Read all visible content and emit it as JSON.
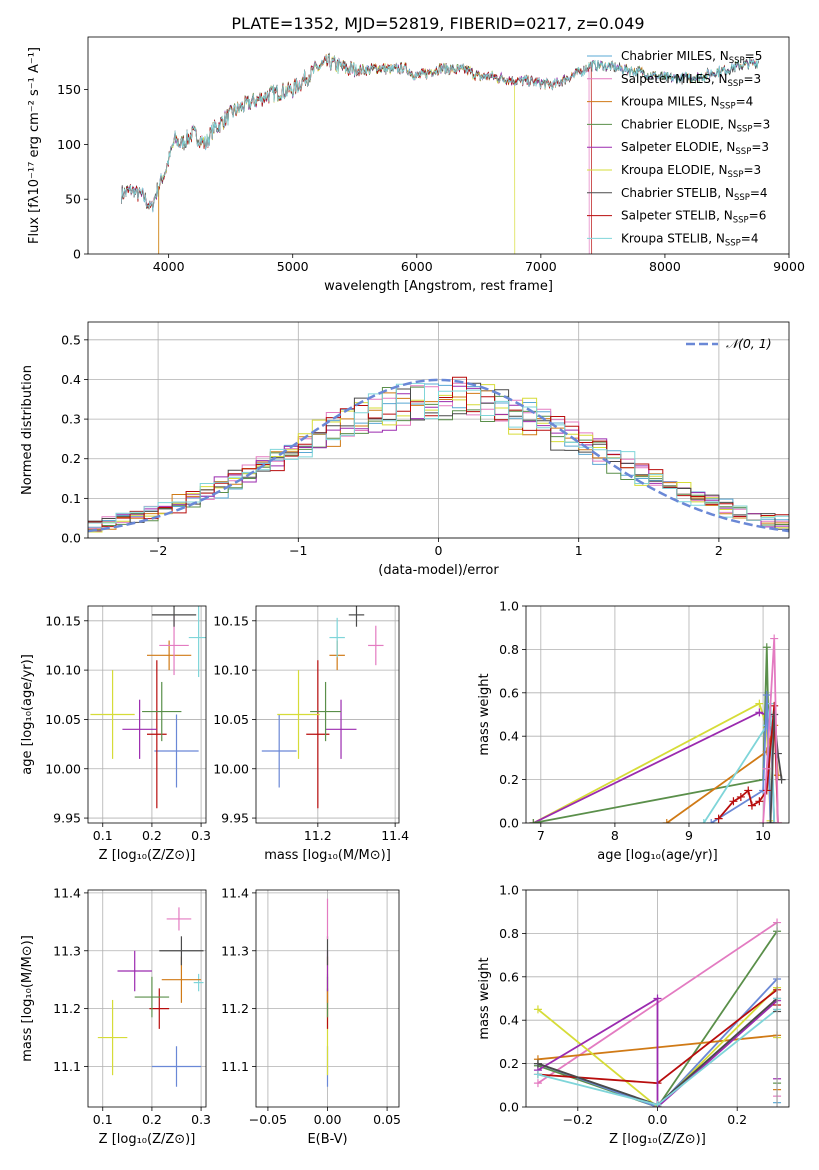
{
  "figure_title": "PLATE=1352, MJD=52819, FIBERID=0217, z=0.049",
  "colors": [
    "#59a8d4",
    "#e37bc1",
    "#d07a16",
    "#5a8f4a",
    "#9b2aaf",
    "#d6dc38",
    "#4a4a4a",
    "#b80d0d",
    "#7fd5d9"
  ],
  "chart_data": [
    {
      "type": "line",
      "id": "spectrum",
      "xlabel": "wavelength [Angstrom, rest frame]",
      "ylabel": "Flux [fλ10⁻¹⁷ erg cm⁻² s⁻¹ A⁻¹]",
      "xlim": [
        3350,
        9000
      ],
      "ylim": [
        0,
        198
      ],
      "x_ticks": [
        4000,
        5000,
        6000,
        7000,
        8000,
        9000
      ],
      "y_ticks": [
        0,
        50,
        100,
        150
      ],
      "legend_position": "right",
      "legend": [
        {
          "label": "Chabrier MILES, N",
          "sub": "SSP",
          "suffix": "=5"
        },
        {
          "label": "Salpeter MILES, N",
          "sub": "SSP",
          "suffix": "=3"
        },
        {
          "label": "Kroupa MILES, N",
          "sub": "SSP",
          "suffix": "=4"
        },
        {
          "label": "Chabrier ELODIE, N",
          "sub": "SSP",
          "suffix": "=3"
        },
        {
          "label": "Salpeter ELODIE, N",
          "sub": "SSP",
          "suffix": "=3"
        },
        {
          "label": "Kroupa ELODIE, N",
          "sub": "SSP",
          "suffix": "=3"
        },
        {
          "label": "Chabrier STELIB, N",
          "sub": "SSP",
          "suffix": "=4"
        },
        {
          "label": "Salpeter STELIB, N",
          "sub": "SSP",
          "suffix": "=6"
        },
        {
          "label": "Kroupa STELIB, N",
          "sub": "SSP",
          "suffix": "=4"
        }
      ],
      "continuum": [
        [
          3620,
          55
        ],
        [
          3700,
          58
        ],
        [
          3800,
          52
        ],
        [
          3860,
          42
        ],
        [
          3920,
          62
        ],
        [
          3980,
          78
        ],
        [
          4050,
          105
        ],
        [
          4100,
          100
        ],
        [
          4200,
          110
        ],
        [
          4300,
          100
        ],
        [
          4350,
          112
        ],
        [
          4500,
          128
        ],
        [
          4600,
          135
        ],
        [
          4700,
          140
        ],
        [
          4800,
          145
        ],
        [
          4900,
          148
        ],
        [
          5000,
          150
        ],
        [
          5100,
          160
        ],
        [
          5200,
          170
        ],
        [
          5300,
          175
        ],
        [
          5400,
          170
        ],
        [
          5500,
          168
        ],
        [
          5600,
          168
        ],
        [
          5700,
          170
        ],
        [
          5800,
          168
        ],
        [
          5900,
          170
        ],
        [
          6000,
          162
        ],
        [
          6100,
          166
        ],
        [
          6200,
          170
        ],
        [
          6300,
          168
        ],
        [
          6400,
          168
        ],
        [
          6500,
          162
        ],
        [
          6600,
          162
        ],
        [
          6700,
          160
        ],
        [
          6800,
          158
        ],
        [
          6900,
          158
        ],
        [
          7000,
          156
        ],
        [
          7100,
          154
        ],
        [
          7200,
          160
        ],
        [
          7300,
          165
        ],
        [
          7400,
          172
        ],
        [
          7500,
          172
        ],
        [
          7600,
          170
        ],
        [
          7700,
          168
        ],
        [
          7800,
          166
        ],
        [
          7900,
          163
        ],
        [
          8000,
          161
        ],
        [
          8100,
          160
        ],
        [
          8200,
          161
        ],
        [
          8300,
          162
        ],
        [
          8400,
          166
        ],
        [
          8500,
          168
        ],
        [
          8600,
          172
        ],
        [
          8700,
          174
        ],
        [
          8760,
          175
        ]
      ],
      "series_ranges": [
        [
          3620,
          8760
        ],
        [
          3620,
          7390
        ],
        [
          3620,
          8760
        ],
        [
          3620,
          8760
        ],
        [
          3620,
          8760
        ],
        [
          3920,
          6790
        ],
        [
          3620,
          8760
        ],
        [
          3620,
          7410
        ],
        [
          3620,
          8760
        ]
      ]
    },
    {
      "type": "line",
      "id": "residuals",
      "xlabel": "(data-model)/error",
      "ylabel": "Normed distribution",
      "xlim": [
        -2.5,
        2.5
      ],
      "ylim": [
        0,
        0.545
      ],
      "x_ticks": [
        -2,
        -1,
        0,
        1,
        2
      ],
      "y_ticks": [
        0.0,
        0.1,
        0.2,
        0.3,
        0.4,
        0.5
      ],
      "grid": true,
      "legend_position": "top-right",
      "normal_label": "𝒩(0, 1)",
      "normal_color": "#6a88d6",
      "bin_width": 0.1,
      "bin_start": -2.5
    },
    {
      "type": "scatter",
      "id": "age-vs-Z",
      "xlabel": "Z [log₁₀(Z/Z⊙)]",
      "ylabel": "age  [log₁₀(age/yr)]",
      "xlim": [
        0.07,
        0.31
      ],
      "ylim": [
        9.945,
        10.165
      ],
      "x_ticks": [
        0.1,
        0.2,
        0.3
      ],
      "y_ticks": [
        9.95,
        10.0,
        10.05,
        10.1,
        10.15
      ],
      "grid": true,
      "points": [
        {
          "x": 0.25,
          "y": 10.018,
          "xerr": 0.045,
          "yerr": 0.037,
          "color": "#6a88d6"
        },
        {
          "x": 0.21,
          "y": 10.035,
          "xerr": 0.02,
          "yerr": 0.075,
          "color": "#b80d0d"
        },
        {
          "x": 0.175,
          "y": 10.04,
          "xerr": 0.035,
          "yerr": 0.03,
          "color": "#9b2aaf"
        },
        {
          "x": 0.12,
          "y": 10.055,
          "xerr": 0.045,
          "yerr": 0.045,
          "color": "#d6dc38"
        },
        {
          "x": 0.22,
          "y": 10.058,
          "xerr": 0.04,
          "yerr": 0.03,
          "color": "#5a8f4a"
        },
        {
          "x": 0.235,
          "y": 10.115,
          "xerr": 0.045,
          "yerr": 0.015,
          "color": "#d07a16"
        },
        {
          "x": 0.245,
          "y": 10.125,
          "xerr": 0.03,
          "yerr": 0.03,
          "color": "#e37bc1"
        },
        {
          "x": 0.295,
          "y": 10.133,
          "xerr": 0.02,
          "yerr": 0.04,
          "color": "#7fd5d9"
        },
        {
          "x": 0.245,
          "y": 10.156,
          "xerr": 0.045,
          "yerr": 0.012,
          "color": "#4a4a4a"
        }
      ]
    },
    {
      "type": "scatter",
      "id": "age-vs-mass",
      "xlabel": "mass [log₁₀(M/M⊙)]",
      "ylabel": "",
      "xlim": [
        11.04,
        11.41
      ],
      "ylim": [
        9.945,
        10.165
      ],
      "x_ticks": [
        11.2,
        11.4
      ],
      "y_ticks": [
        9.95,
        10.0,
        10.05,
        10.1,
        10.15
      ],
      "grid": true,
      "points": [
        {
          "x": 11.1,
          "y": 10.018,
          "xerr": 0.045,
          "yerr": 0.037,
          "color": "#6a88d6"
        },
        {
          "x": 11.2,
          "y": 10.035,
          "xerr": 0.03,
          "yerr": 0.075,
          "color": "#b80d0d"
        },
        {
          "x": 11.26,
          "y": 10.04,
          "xerr": 0.04,
          "yerr": 0.03,
          "color": "#9b2aaf"
        },
        {
          "x": 11.15,
          "y": 10.055,
          "xerr": 0.055,
          "yerr": 0.045,
          "color": "#d6dc38"
        },
        {
          "x": 11.22,
          "y": 10.058,
          "xerr": 0.04,
          "yerr": 0.03,
          "color": "#5a8f4a"
        },
        {
          "x": 11.25,
          "y": 10.115,
          "xerr": 0.02,
          "yerr": 0.015,
          "color": "#d07a16"
        },
        {
          "x": 11.35,
          "y": 10.125,
          "xerr": 0.02,
          "yerr": 0.02,
          "color": "#e37bc1"
        },
        {
          "x": 11.25,
          "y": 10.133,
          "xerr": 0.02,
          "yerr": 0.02,
          "color": "#7fd5d9"
        },
        {
          "x": 11.3,
          "y": 10.156,
          "xerr": 0.02,
          "yerr": 0.012,
          "color": "#4a4a4a"
        }
      ]
    },
    {
      "type": "line",
      "id": "mass-weight-vs-age",
      "xlabel": "age  [log₁₀(age/yr)]",
      "ylabel": "mass weight",
      "xlim": [
        6.8,
        10.35
      ],
      "ylim": [
        0,
        1.0
      ],
      "x_ticks": [
        7,
        8,
        9,
        10
      ],
      "y_ticks": [
        0.0,
        0.2,
        0.4,
        0.6,
        0.8,
        1.0
      ],
      "grid": true,
      "series": [
        {
          "color": "#d6dc38",
          "points": [
            [
              6.9,
              0.0
            ],
            [
              9.95,
              0.55
            ],
            [
              10.05,
              0.44
            ],
            [
              10.1,
              0.01
            ]
          ]
        },
        {
          "color": "#9b2aaf",
          "points": [
            [
              6.9,
              0.0
            ],
            [
              9.95,
              0.51
            ],
            [
              10.1,
              0.49
            ],
            [
              10.15,
              0.0
            ]
          ]
        },
        {
          "color": "#5a8f4a",
          "points": [
            [
              6.9,
              0.0
            ],
            [
              10.0,
              0.2
            ],
            [
              10.05,
              0.81
            ],
            [
              10.1,
              0.0
            ]
          ]
        },
        {
          "color": "#d07a16",
          "points": [
            [
              8.7,
              0.0
            ],
            [
              10.05,
              0.33
            ],
            [
              10.15,
              0.45
            ],
            [
              10.2,
              0.22
            ]
          ]
        },
        {
          "color": "#7fd5d9",
          "points": [
            [
              9.2,
              0.0
            ],
            [
              10.05,
              0.45
            ],
            [
              10.1,
              0.55
            ],
            [
              10.15,
              0.0
            ]
          ]
        },
        {
          "color": "#6a88d6",
          "points": [
            [
              9.3,
              0.0
            ],
            [
              10.0,
              0.15
            ],
            [
              10.05,
              0.59
            ],
            [
              10.1,
              0.0
            ]
          ]
        },
        {
          "color": "#b80d0d",
          "points": [
            [
              9.4,
              0.02
            ],
            [
              9.6,
              0.1
            ],
            [
              9.7,
              0.12
            ],
            [
              9.8,
              0.15
            ],
            [
              9.85,
              0.08
            ],
            [
              9.95,
              0.1
            ],
            [
              10.05,
              0.15
            ],
            [
              10.15,
              0.54
            ],
            [
              10.2,
              0.0
            ]
          ]
        },
        {
          "color": "#4a4a4a",
          "points": [
            [
              10.1,
              0.0
            ],
            [
              10.15,
              0.5
            ],
            [
              10.2,
              0.32
            ],
            [
              10.25,
              0.2
            ]
          ]
        },
        {
          "color": "#e37bc1",
          "points": [
            [
              10.0,
              0.0
            ],
            [
              10.05,
              0.25
            ],
            [
              10.15,
              0.85
            ],
            [
              10.2,
              0.0
            ]
          ]
        }
      ]
    },
    {
      "type": "scatter",
      "id": "mass-vs-Z",
      "xlabel": "Z [log₁₀(Z/Z⊙)]",
      "ylabel": "mass [log₁₀(M/M⊙)]",
      "xlim": [
        0.07,
        0.31
      ],
      "ylim": [
        11.03,
        11.405
      ],
      "x_ticks": [
        0.1,
        0.2,
        0.3
      ],
      "y_ticks": [
        11.1,
        11.2,
        11.3,
        11.4
      ],
      "grid": true,
      "points": [
        {
          "x": 0.25,
          "y": 11.1,
          "xerr": 0.05,
          "yerr": 0.035,
          "color": "#6a88d6"
        },
        {
          "x": 0.12,
          "y": 11.15,
          "xerr": 0.03,
          "yerr": 0.065,
          "color": "#d6dc38"
        },
        {
          "x": 0.215,
          "y": 11.2,
          "xerr": 0.02,
          "yerr": 0.035,
          "color": "#b80d0d"
        },
        {
          "x": 0.2,
          "y": 11.22,
          "xerr": 0.035,
          "yerr": 0.035,
          "color": "#5a8f4a"
        },
        {
          "x": 0.295,
          "y": 11.245,
          "xerr": 0.01,
          "yerr": 0.015,
          "color": "#7fd5d9"
        },
        {
          "x": 0.26,
          "y": 11.25,
          "xerr": 0.04,
          "yerr": 0.04,
          "color": "#d07a16"
        },
        {
          "x": 0.165,
          "y": 11.265,
          "xerr": 0.035,
          "yerr": 0.035,
          "color": "#9b2aaf"
        },
        {
          "x": 0.26,
          "y": 11.3,
          "xerr": 0.045,
          "yerr": 0.025,
          "color": "#4a4a4a"
        },
        {
          "x": 0.255,
          "y": 11.355,
          "xerr": 0.025,
          "yerr": 0.02,
          "color": "#e37bc1"
        }
      ]
    },
    {
      "type": "scatter",
      "id": "mass-vs-ebv",
      "xlabel": "E(B-V)",
      "ylabel": "",
      "xlim": [
        -0.06,
        0.06
      ],
      "ylim": [
        11.03,
        11.405
      ],
      "x_ticks": [
        -0.05,
        0.0,
        0.05
      ],
      "y_ticks": [
        11.1,
        11.2,
        11.3,
        11.4
      ],
      "grid": true,
      "points": [
        {
          "x": 0.0,
          "y": 11.1,
          "xerr": 0,
          "yerr": 0.035,
          "color": "#6a88d6"
        },
        {
          "x": 0.0,
          "y": 11.15,
          "xerr": 0,
          "yerr": 0.065,
          "color": "#d6dc38"
        },
        {
          "x": 0.0,
          "y": 11.2,
          "xerr": 0,
          "yerr": 0.035,
          "color": "#b80d0d"
        },
        {
          "x": 0.0,
          "y": 11.22,
          "xerr": 0,
          "yerr": 0.035,
          "color": "#5a8f4a"
        },
        {
          "x": 0.0,
          "y": 11.245,
          "xerr": 0,
          "yerr": 0.015,
          "color": "#7fd5d9"
        },
        {
          "x": 0.0,
          "y": 11.25,
          "xerr": 0,
          "yerr": 0.04,
          "color": "#d07a16"
        },
        {
          "x": 0.0,
          "y": 11.265,
          "xerr": 0,
          "yerr": 0.035,
          "color": "#9b2aaf"
        },
        {
          "x": 0.0,
          "y": 11.3,
          "xerr": 0,
          "yerr": 0.025,
          "color": "#4a4a4a"
        },
        {
          "x": 0.0,
          "y": 11.355,
          "xerr": 0,
          "yerr": 0.035,
          "color": "#e37bc1"
        }
      ]
    },
    {
      "type": "line",
      "id": "mass-weight-vs-Z",
      "xlabel": "Z [log₁₀(Z/Z⊙)]",
      "ylabel": "mass weight",
      "xlim": [
        -0.33,
        0.33
      ],
      "ylim": [
        0,
        1.0
      ],
      "x_ticks": [
        -0.2,
        0.0,
        0.2
      ],
      "y_ticks": [
        0.0,
        0.2,
        0.4,
        0.6,
        0.8,
        1.0
      ],
      "grid": true,
      "series": [
        {
          "color": "#e37bc1",
          "points": [
            [
              -0.3,
              0.11
            ],
            [
              0.3,
              0.85
            ]
          ]
        },
        {
          "color": "#5a8f4a",
          "points": [
            [
              -0.3,
              0.19
            ],
            [
              0.0,
              0.0
            ],
            [
              0.3,
              0.81
            ]
          ]
        },
        {
          "color": "#6a88d6",
          "points": [
            [
              -0.3,
              0.2
            ],
            [
              0.0,
              0.0
            ],
            [
              0.3,
              0.59
            ]
          ]
        },
        {
          "color": "#d07a16",
          "points": [
            [
              -0.3,
              0.22
            ],
            [
              0.3,
              0.33
            ]
          ]
        },
        {
          "color": "#d6dc38",
          "points": [
            [
              -0.3,
              0.45
            ],
            [
              0.0,
              0.0
            ],
            [
              0.3,
              0.55
            ]
          ]
        },
        {
          "color": "#b80d0d",
          "points": [
            [
              -0.3,
              0.15
            ],
            [
              0.0,
              0.11
            ],
            [
              0.3,
              0.54
            ]
          ]
        },
        {
          "color": "#9b2aaf",
          "points": [
            [
              -0.3,
              0.17
            ],
            [
              0.0,
              0.5
            ],
            [
              0.0,
              0.0
            ],
            [
              0.3,
              0.49
            ]
          ]
        },
        {
          "color": "#4a4a4a",
          "points": [
            [
              -0.3,
              0.2
            ],
            [
              0.0,
              0.01
            ],
            [
              0.3,
              0.5
            ]
          ]
        },
        {
          "color": "#7fd5d9",
          "points": [
            [
              -0.3,
              0.15
            ],
            [
              0.0,
              0.01
            ],
            [
              0.3,
              0.45
            ]
          ]
        }
      ],
      "right_edge_markers": [
        0.02,
        0.05,
        0.08,
        0.11,
        0.13,
        0.32,
        0.44,
        0.47,
        0.5
      ]
    }
  ]
}
